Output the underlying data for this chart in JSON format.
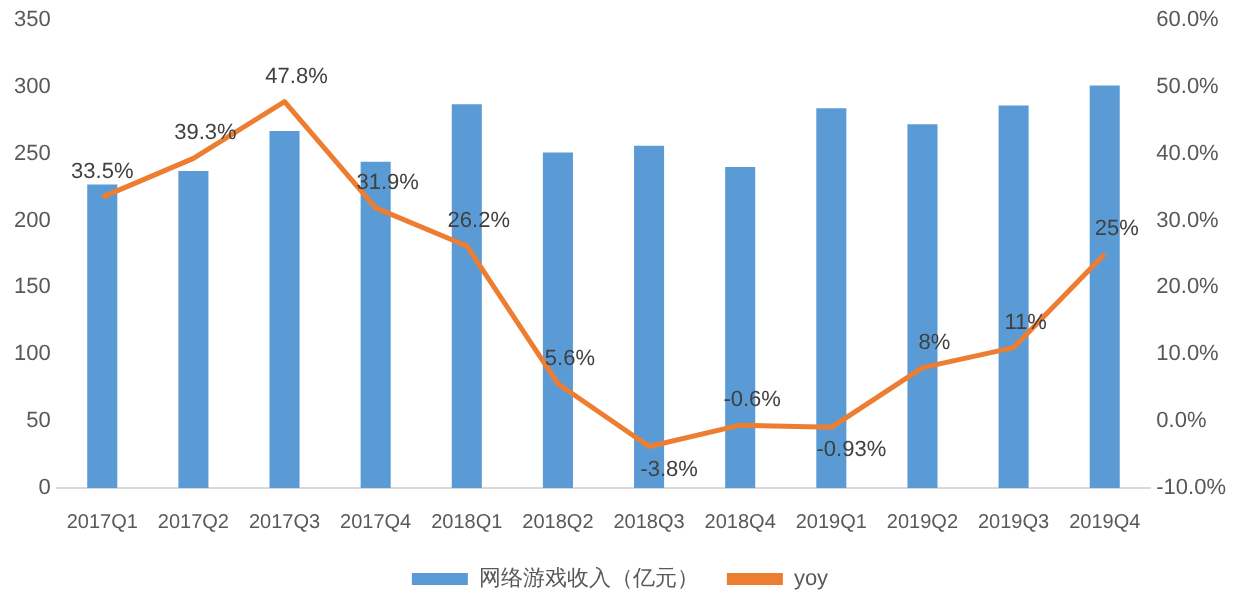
{
  "chart_data": {
    "type": "bar",
    "categories": [
      "2017Q1",
      "2017Q2",
      "2017Q3",
      "2017Q4",
      "2018Q1",
      "2018Q2",
      "2018Q3",
      "2018Q4",
      "2019Q1",
      "2019Q2",
      "2019Q3",
      "2019Q4"
    ],
    "series": [
      {
        "name": "网络游戏收入（亿元）",
        "color": "#5b9bd5",
        "values": [
          227,
          237,
          267,
          244,
          287,
          251,
          256,
          240,
          284,
          272,
          286,
          301
        ]
      },
      {
        "name": "yoy",
        "type": "line",
        "axis": "y2",
        "color": "#ed7d31",
        "marker": "none",
        "values": [
          33.5,
          39.3,
          47.8,
          31.9,
          26.2,
          5.6,
          -3.8,
          -0.6,
          -0.93,
          8,
          11,
          25
        ],
        "value_labels": [
          "33.5%",
          "39.3%",
          "47.8%",
          "31.9%",
          "26.2%",
          "5.6%",
          "-3.8%",
          "-0.6%",
          "-0.93%",
          "8%",
          "11%",
          "25%"
        ]
      }
    ],
    "ylim": [
      0,
      350
    ],
    "yticks": [
      0,
      50,
      100,
      150,
      200,
      250,
      300,
      350
    ],
    "y2lim": [
      -10,
      60
    ],
    "y2ticks": [
      {
        "value": -10,
        "label": "-10.0%"
      },
      {
        "value": 0,
        "label": "0.0%"
      },
      {
        "value": 10,
        "label": "10.0%"
      },
      {
        "value": 20,
        "label": "20.0%"
      },
      {
        "value": 30,
        "label": "30.0%"
      },
      {
        "value": 40,
        "label": "40.0%"
      },
      {
        "value": 50,
        "label": "50.0%"
      },
      {
        "value": 60,
        "label": "60.0%"
      }
    ],
    "grid": false,
    "legend": "bottom"
  }
}
